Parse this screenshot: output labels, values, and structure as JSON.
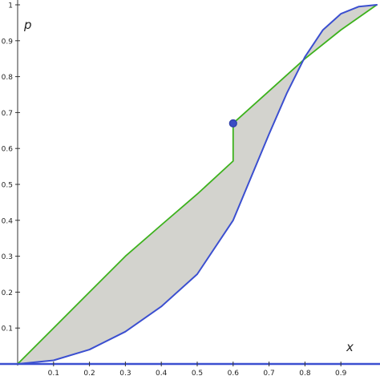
{
  "chart_data": {
    "type": "area",
    "xlabel": "x",
    "ylabel": "p",
    "xlim": [
      0,
      1
    ],
    "ylim": [
      0,
      1
    ],
    "grid": false,
    "x_ticks": [
      "0.1",
      "0.2",
      "0.3",
      "0.4",
      "0.5",
      "0.6",
      "0.7",
      "0.8",
      "0.9"
    ],
    "y_ticks": [
      "0.1",
      "0.2",
      "0.3",
      "0.4",
      "0.5",
      "0.6",
      "0.7",
      "0.8",
      "0.9",
      "1"
    ],
    "series": [
      {
        "color": "#3db21d",
        "x": [
          0,
          0.1,
          0.2,
          0.3,
          0.4,
          0.5,
          0.6,
          0.6,
          0.7,
          0.8,
          0.9,
          1.0
        ],
        "y": [
          0,
          0.1,
          0.2,
          0.3,
          0.387,
          0.473,
          0.565,
          0.67,
          0.76,
          0.85,
          0.93,
          1.0
        ]
      },
      {
        "color": "#3b4fd0",
        "x": [
          0,
          0.1,
          0.2,
          0.3,
          0.4,
          0.5,
          0.6,
          0.65,
          0.7,
          0.75,
          0.8,
          0.85,
          0.9,
          0.95,
          1.0
        ],
        "y": [
          0,
          0.01,
          0.04,
          0.09,
          0.16,
          0.25,
          0.4,
          0.52,
          0.64,
          0.755,
          0.855,
          0.93,
          0.975,
          0.995,
          1.0
        ]
      }
    ],
    "point": {
      "x": 0.6,
      "y": 0.67,
      "color": "#2e3ea8"
    },
    "colors": {
      "fill": "#d3d3ce",
      "axis": "#333333",
      "baseline": "#3b4fd0"
    }
  }
}
